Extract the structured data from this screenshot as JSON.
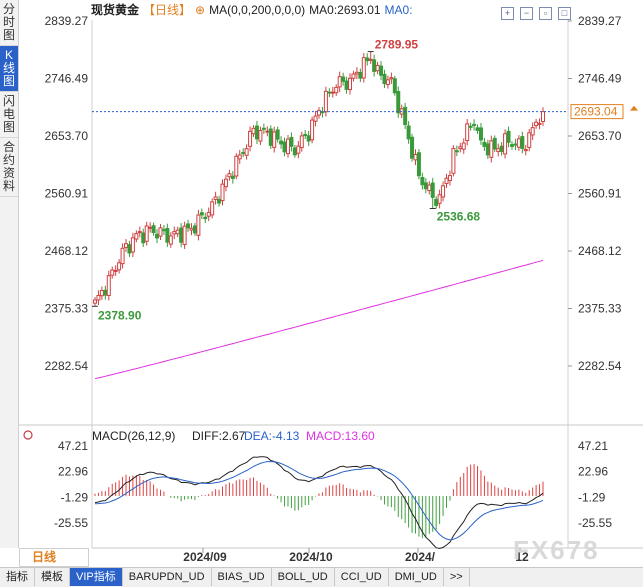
{
  "sidebar": {
    "tabs": [
      {
        "label": "分时图",
        "active": false
      },
      {
        "label": "K线图",
        "active": true
      },
      {
        "label": "闪电图",
        "active": false
      },
      {
        "label": "合约资料",
        "active": false
      }
    ]
  },
  "header": {
    "title": "现货黄金",
    "period": "【日线】",
    "settings_symbol": "⊕",
    "ma_label": "MA(0,0,200,0,0,0)",
    "ma0_value": "MA0:2693.01",
    "ma0_label": "MA0:"
  },
  "toolbar_icons": [
    "plus-icon",
    "minus-icon",
    "restore-icon",
    "window-icon"
  ],
  "price_axis": {
    "ticks": [
      "2839.27",
      "2746.49",
      "2653.70",
      "2560.91",
      "2468.12",
      "2375.33",
      "2282.54"
    ],
    "current_price": "2693.04"
  },
  "annotations": {
    "high": "2789.95",
    "low_recent": "2536.68",
    "low_start": "2378.90"
  },
  "macd": {
    "label": "MACD(26,12,9)",
    "diff": "DIFF:2.67",
    "dea": "DEA:-4.13",
    "macd": "MACD:13.60",
    "ticks": [
      "47.21",
      "22.96",
      "-1.29",
      "-25.55"
    ]
  },
  "time_axis": {
    "labels": [
      "2024/09",
      "2024/10",
      "2024/",
      "12"
    ]
  },
  "period_button": "日线",
  "bottom_tabs": [
    {
      "label": "指标",
      "active": false
    },
    {
      "label": "模板",
      "active": false
    },
    {
      "label": "VIP指标",
      "active": true
    },
    {
      "label": "BARUPDN_UD",
      "active": false
    },
    {
      "label": "BIAS_UD",
      "active": false
    },
    {
      "label": "BOLL_UD",
      "active": false
    },
    {
      "label": "CCI_UD",
      "active": false
    },
    {
      "label": "DMI_UD",
      "active": false
    },
    {
      "label": ">>",
      "active": false
    }
  ],
  "watermark": "FX678",
  "colors": {
    "up": "#d04040",
    "down": "#3a9a3a",
    "ma": "#e030e0",
    "macd_up": "#e04040",
    "macd_down": "#40a040",
    "accent": "#2a62c9",
    "orange": "#e08020"
  },
  "chart_data": {
    "type": "candlestick",
    "symbol": "现货黄金",
    "period": "daily",
    "ylim": [
      2240,
      2860
    ],
    "price_ticks": [
      2839.27,
      2746.49,
      2653.7,
      2560.91,
      2468.12,
      2375.33,
      2282.54
    ],
    "current_price": 2693.04,
    "ma200_end": 2693.01,
    "ma_start": 2262,
    "annotated_high": 2789.95,
    "annotated_low": 2536.68,
    "start_low": 2378.9,
    "macd": {
      "diff": 2.67,
      "dea": -4.13,
      "macd": 13.6,
      "ylim": [
        -40,
        55
      ]
    }
  }
}
